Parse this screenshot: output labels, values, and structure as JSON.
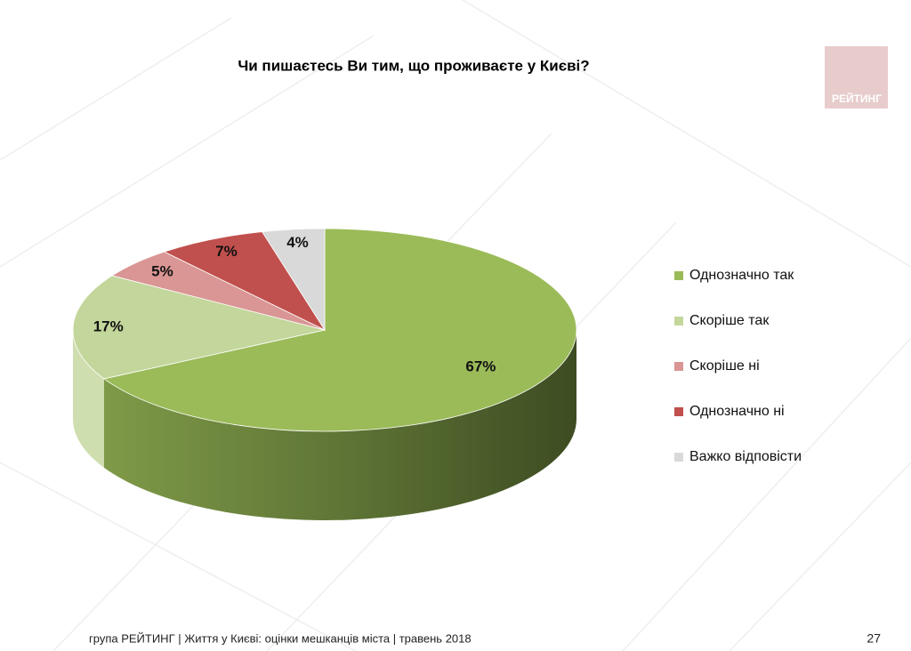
{
  "chart_data": {
    "type": "pie3d",
    "title": "Чи пишаєтесь Ви тим, що проживаєте у Києві?",
    "categories": [
      "Однозначно так",
      "Скоріше так",
      "Скоріше ні",
      "Однозначно ні",
      "Важко відповісти"
    ],
    "values": [
      67,
      17,
      5,
      7,
      4
    ],
    "value_labels": [
      "67%",
      "17%",
      "5%",
      "7%",
      "4%"
    ],
    "colors": [
      "#9bbb59",
      "#c3d69b",
      "#d99694",
      "#c0504d",
      "#d9d9d9"
    ],
    "legend": "right"
  },
  "logo": "РЕЙТИНГ",
  "footer": "група РЕЙТИНГ  | Життя у Києві: оцінки мешканців міста |  травень 2018",
  "page_number": "27"
}
